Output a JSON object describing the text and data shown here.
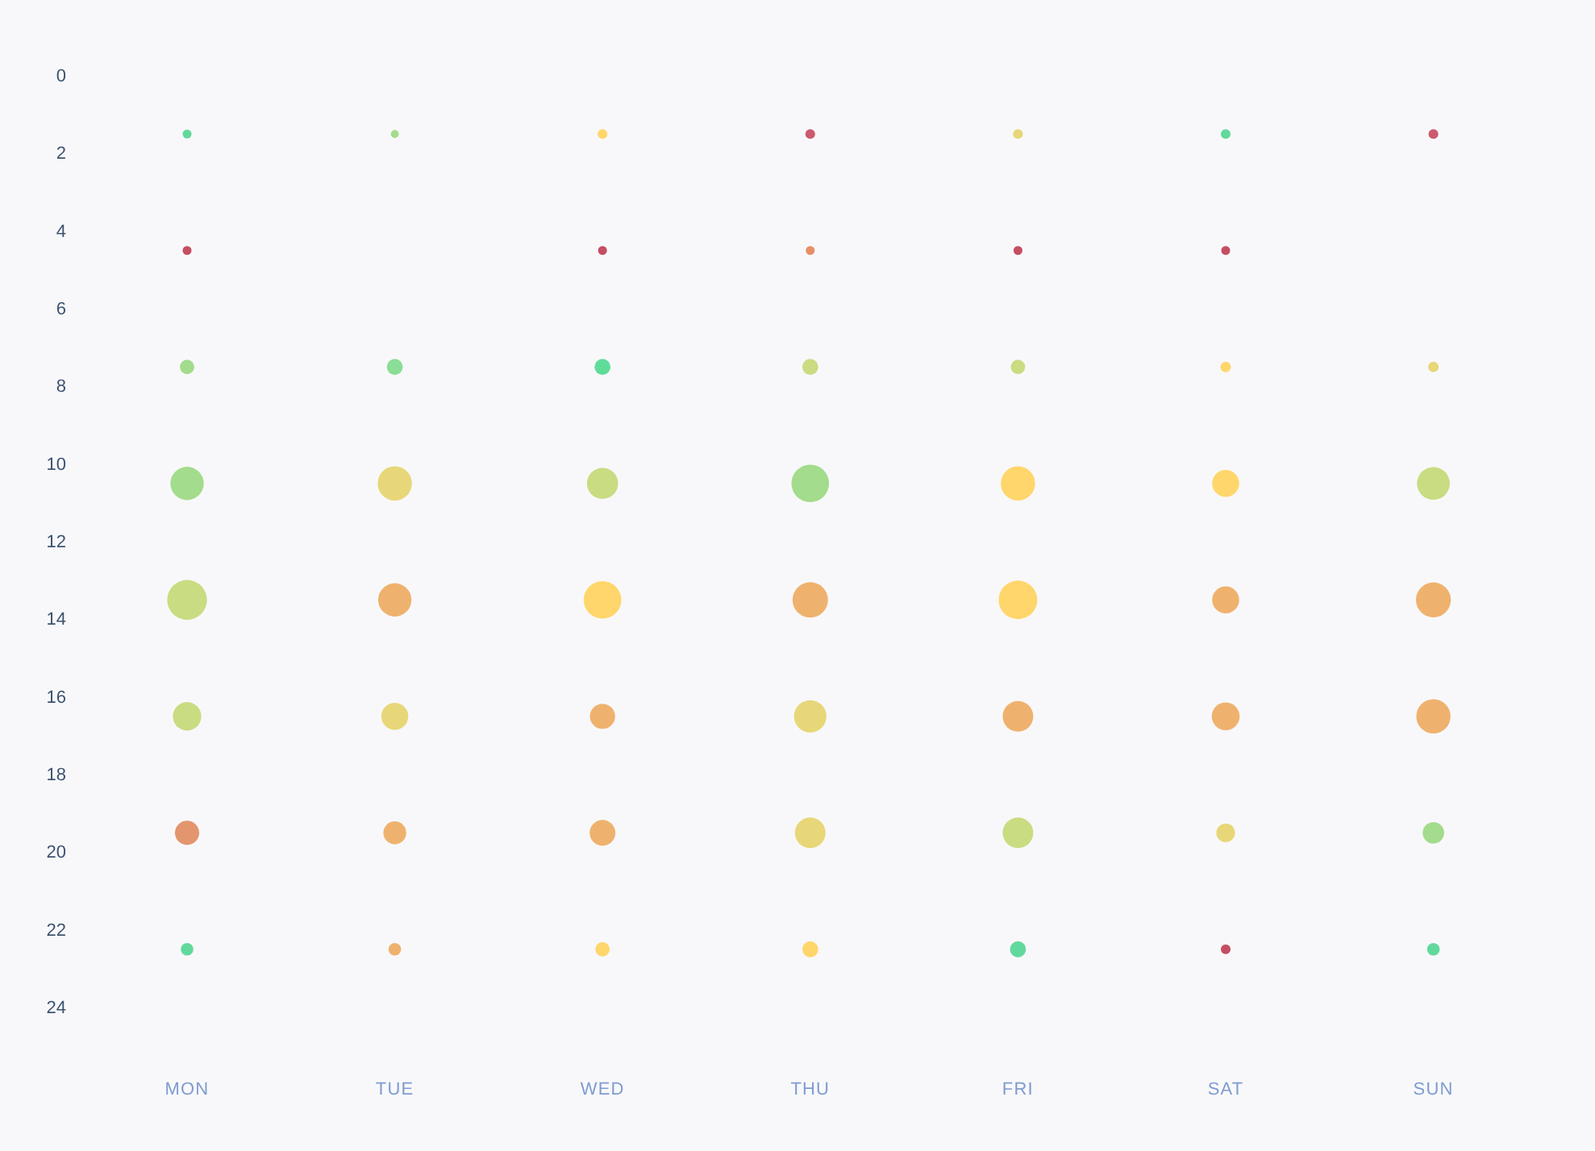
{
  "chart_data": {
    "type": "bubble",
    "categories": [
      "MON",
      "TUE",
      "WED",
      "THU",
      "FRI",
      "SAT",
      "SUN"
    ],
    "ylim": [
      24,
      0
    ],
    "yticks": [
      0,
      2,
      4,
      6,
      8,
      10,
      12,
      14,
      16,
      18,
      20,
      22,
      24
    ],
    "series": [
      {
        "values": [
          1.5,
          1.5,
          1.5,
          1.5,
          1.5,
          1.5,
          1.5
        ],
        "sizes": [
          0.05,
          0.04,
          0.06,
          0.06,
          0.06,
          0.06,
          0.06
        ],
        "colors": [
          "#62d99c",
          "#a3dc8c",
          "#ffd66b",
          "#cc5a6e",
          "#e8d778",
          "#62d99c",
          "#cc5a6e"
        ]
      },
      {
        "values": [
          4.5,
          null,
          4.5,
          4.5,
          4.5,
          4.5,
          null
        ],
        "sizes": [
          0.05,
          null,
          0.05,
          0.05,
          0.05,
          0.05,
          null
        ],
        "colors": [
          "#c44e62",
          null,
          "#c44e62",
          "#e88e66",
          "#c44e62",
          "#c44e62",
          null
        ]
      },
      {
        "values": [
          7.5,
          7.5,
          7.5,
          7.5,
          7.5,
          7.5,
          7.5
        ],
        "sizes": [
          0.13,
          0.16,
          0.16,
          0.16,
          0.13,
          0.07,
          0.07
        ],
        "colors": [
          "#a3dc8c",
          "#8ade96",
          "#5fdc9a",
          "#c9dc82",
          "#c9dc82",
          "#ffd66b",
          "#e8d778"
        ]
      },
      {
        "values": [
          10.5,
          10.5,
          10.5,
          10.5,
          10.5,
          10.5,
          10.5
        ],
        "sizes": [
          0.7,
          0.74,
          0.61,
          0.89,
          0.74,
          0.46,
          0.68
        ],
        "colors": [
          "#a3dc8c",
          "#e8d778",
          "#c9dc82",
          "#a3dc8c",
          "#ffd66b",
          "#ffd66b",
          "#c9dc82"
        ]
      },
      {
        "values": [
          13.5,
          13.5,
          13.5,
          13.5,
          13.5,
          13.5,
          13.5
        ],
        "sizes": [
          1,
          0.7,
          0.89,
          0.79,
          0.94,
          0.46,
          0.77
        ],
        "colors": [
          "#c9dc82",
          "#efb26e",
          "#ffd66b",
          "#efb26e",
          "#ffd66b",
          "#efb26e",
          "#efb26e"
        ]
      },
      {
        "values": [
          16.5,
          16.5,
          16.5,
          16.5,
          16.5,
          16.5,
          16.5
        ],
        "sizes": [
          0.51,
          0.46,
          0.4,
          0.66,
          0.59,
          0.49,
          0.74
        ],
        "colors": [
          "#c9dc82",
          "#e8d778",
          "#efb26e",
          "#e8d778",
          "#efb26e",
          "#efb26e",
          "#efb26e"
        ]
      },
      {
        "values": [
          19.5,
          19.5,
          19.5,
          19.5,
          19.5,
          19.5,
          19.5
        ],
        "sizes": [
          0.37,
          0.33,
          0.42,
          0.59,
          0.59,
          0.22,
          0.29
        ],
        "colors": [
          "#e3956e",
          "#efb26e",
          "#efb26e",
          "#e8d778",
          "#c9dc82",
          "#e8d778",
          "#a3dc8c"
        ]
      },
      {
        "values": [
          22.5,
          22.5,
          22.5,
          22.5,
          22.5,
          22.5,
          22.5
        ],
        "sizes": [
          0.1,
          0.1,
          0.13,
          0.16,
          0.16,
          0.06,
          0.1
        ],
        "colors": [
          "#62d99c",
          "#efb26e",
          "#ffd66b",
          "#ffd66b",
          "#62d99c",
          "#c44e62",
          "#62d99c"
        ]
      }
    ]
  }
}
